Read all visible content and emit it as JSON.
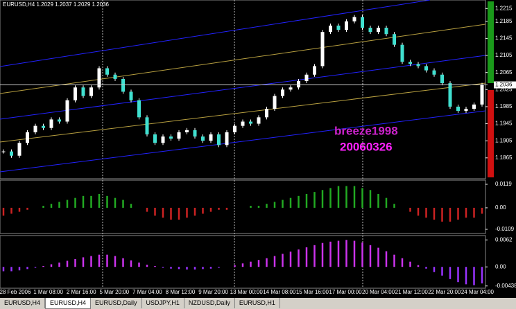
{
  "header": "EURUSD,H4  1.2029 1.2037 1.2029 1.2036",
  "watermark": [
    "breeze1998",
    "20060326"
  ],
  "chart": {
    "type": "candlestick",
    "closes": [
      1.188,
      1.187,
      1.19,
      1.1925,
      1.194,
      1.1935,
      1.1955,
      1.195,
      1.2,
      1.203,
      1.201,
      1.203,
      1.2075,
      1.206,
      1.205,
      1.202,
      1.2,
      1.196,
      1.192,
      1.19,
      1.1915,
      1.191,
      1.1925,
      1.193,
      1.1915,
      1.1905,
      1.192,
      1.1895,
      1.1925,
      1.194,
      1.195,
      1.1945,
      1.196,
      1.198,
      1.201,
      1.2025,
      1.203,
      1.2045,
      1.206,
      1.208,
      1.216,
      1.2175,
      1.2165,
      1.2185,
      1.2195,
      1.217,
      1.216,
      1.217,
      1.2155,
      1.213,
      1.209,
      1.2085,
      1.208,
      1.207,
      1.206,
      1.204,
      1.1985,
      1.1975,
      1.198,
      1.199,
      1.2036
    ],
    "ylim": [
      1.1816,
      1.2235
    ],
    "yticks": [
      1.2215,
      1.2185,
      1.2145,
      1.2105,
      1.2065,
      1.2025,
      1.1985,
      1.1945,
      1.1905,
      1.1865
    ],
    "current": 1.2036
  },
  "indicator1": {
    "type": "histogram",
    "values": [
      -0.004,
      -0.003,
      -0.002,
      -0.001,
      0.0,
      0.001,
      0.002,
      0.003,
      0.004,
      0.005,
      0.006,
      0.006,
      0.007,
      0.006,
      0.005,
      0.004,
      0.002,
      0.0,
      -0.002,
      -0.004,
      -0.005,
      -0.006,
      -0.006,
      -0.005,
      -0.004,
      -0.003,
      -0.002,
      -0.001,
      -0.001,
      0.0,
      0.0,
      0.001,
      0.001,
      0.002,
      0.003,
      0.004,
      0.005,
      0.006,
      0.007,
      0.008,
      0.009,
      0.01,
      0.011,
      0.011,
      0.011,
      0.01,
      0.009,
      0.007,
      0.005,
      0.002,
      0.0,
      -0.002,
      -0.004,
      -0.005,
      -0.006,
      -0.007,
      -0.007,
      -0.006,
      -0.005,
      -0.005,
      -0.003
    ],
    "ylim": [
      -0.013,
      0.014
    ],
    "yticks": [
      0.0119,
      {
        "value": 0,
        "label": "0.00"
      },
      -0.0109
    ]
  },
  "indicator2": {
    "type": "histogram",
    "values": [
      -0.001,
      -0.001,
      -0.0008,
      -0.0005,
      -0.0002,
      0.0002,
      0.0006,
      0.001,
      0.0014,
      0.0018,
      0.0022,
      0.0025,
      0.0028,
      0.0028,
      0.0025,
      0.002,
      0.0015,
      0.001,
      0.0005,
      0.0002,
      -0.0002,
      -0.0004,
      -0.0005,
      -0.0006,
      -0.0006,
      -0.0005,
      -0.0004,
      -0.0002,
      0.0,
      0.0004,
      0.0008,
      0.0012,
      0.0016,
      0.002,
      0.0025,
      0.003,
      0.0035,
      0.004,
      0.0045,
      0.005,
      0.0055,
      0.0058,
      0.006,
      0.0062,
      0.006,
      0.0056,
      0.005,
      0.0044,
      0.0036,
      0.0028,
      0.002,
      0.0012,
      0.0004,
      -0.0004,
      -0.0012,
      -0.002,
      -0.0028,
      -0.0035,
      -0.004,
      -0.0042,
      -0.0038
    ],
    "ylim": [
      -0.0049,
      0.0072
    ],
    "yticks": [
      0.0062,
      {
        "value": 0,
        "label": "0.00"
      },
      -0.00438
    ]
  },
  "dates": [
    "28 Feb 2006",
    "1 Mar 08:00",
    "2 Mar 16:00",
    "5 Mar 20:00",
    "7 Mar 04:00",
    "8 Mar 12:00",
    "9 Mar 20:00",
    "13 Mar 00:00",
    "14 Mar 08:00",
    "15 Mar 16:00",
    "17 Mar 00:00",
    "20 Mar 04:00",
    "21 Mar 12:00",
    "22 Mar 20:00",
    "24 Mar 04:00"
  ],
  "tabs": [
    "EURUSD,H4",
    "EURUSD,H4",
    "EURUSD,Daily",
    "USDJPY,H1",
    "NZDUSD,Daily",
    "EURUSD,H1"
  ]
}
